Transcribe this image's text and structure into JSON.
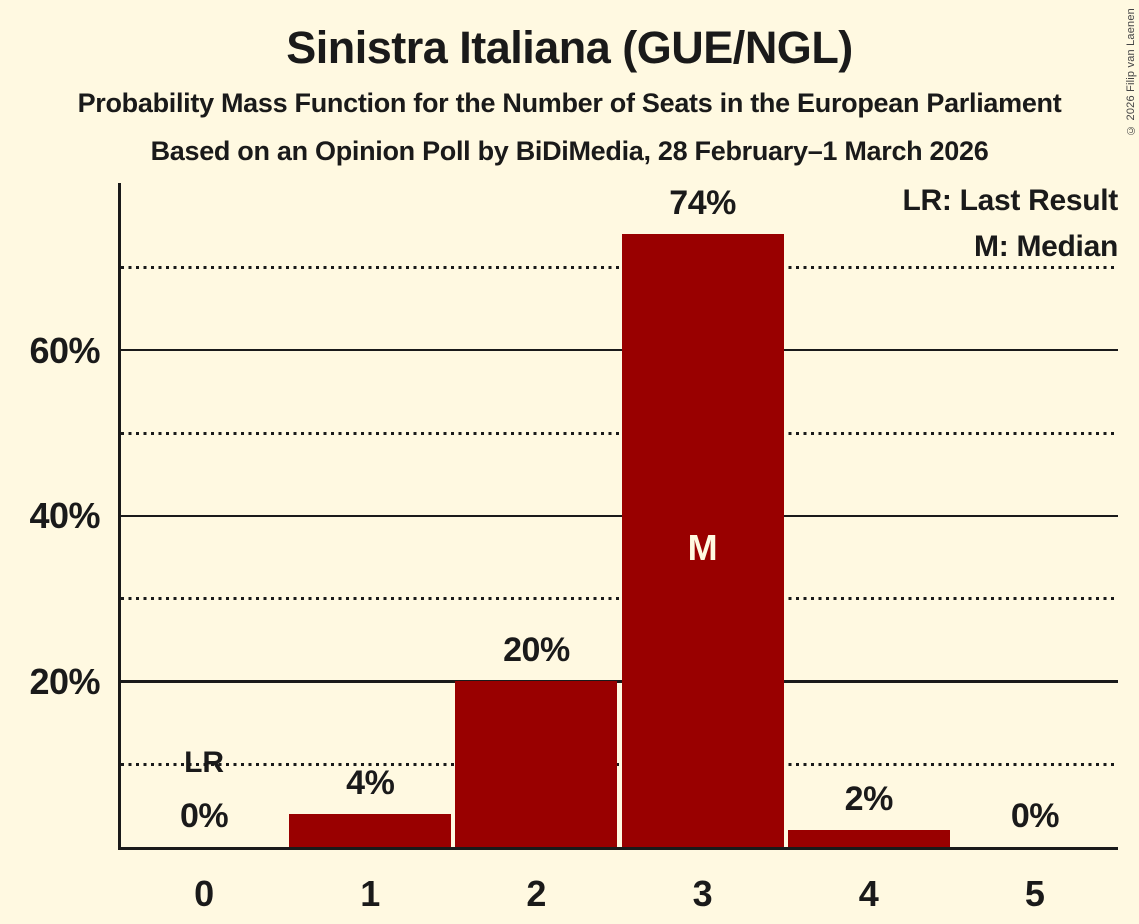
{
  "header": {
    "title": "Sinistra Italiana (GUE/NGL)",
    "subtitle_line1": "Probability Mass Function for the Number of Seats in the European Parliament",
    "subtitle_line2": "Based on an Opinion Poll by BiDiMedia, 28 February–1 March 2026"
  },
  "legend": {
    "last_result_label": "LR: Last Result",
    "median_label": "M: Median"
  },
  "copyright_notice": "© 2026 Filip van Laenen",
  "colors": {
    "background": "#FFF9E1",
    "bar": "#990000",
    "ink": "#1A1A1A",
    "median_text": "#FFF9E1"
  },
  "chart_data": {
    "type": "bar",
    "title": "Sinistra Italiana (GUE/NGL)",
    "xlabel": "",
    "ylabel": "",
    "categories": [
      "0",
      "1",
      "2",
      "3",
      "4",
      "5"
    ],
    "values_pct": [
      0,
      4,
      20,
      74,
      2,
      0
    ],
    "bar_labels": [
      "0%",
      "4%",
      "20%",
      "74%",
      "2%",
      "0%"
    ],
    "ylim": [
      0,
      80
    ],
    "grid": "horizontal",
    "solid_gridlines_pct": [
      20,
      40,
      60
    ],
    "dotted_gridlines_pct": [
      10,
      30,
      50,
      70
    ],
    "ytick_labels": [
      {
        "pct": 20,
        "label": "20%"
      },
      {
        "pct": 40,
        "label": "40%"
      },
      {
        "pct": 60,
        "label": "60%"
      }
    ],
    "annotations": {
      "last_result": {
        "category": "0",
        "marker": "LR"
      },
      "median": {
        "category": "3",
        "marker": "M"
      }
    },
    "legend_position": "top-right"
  }
}
